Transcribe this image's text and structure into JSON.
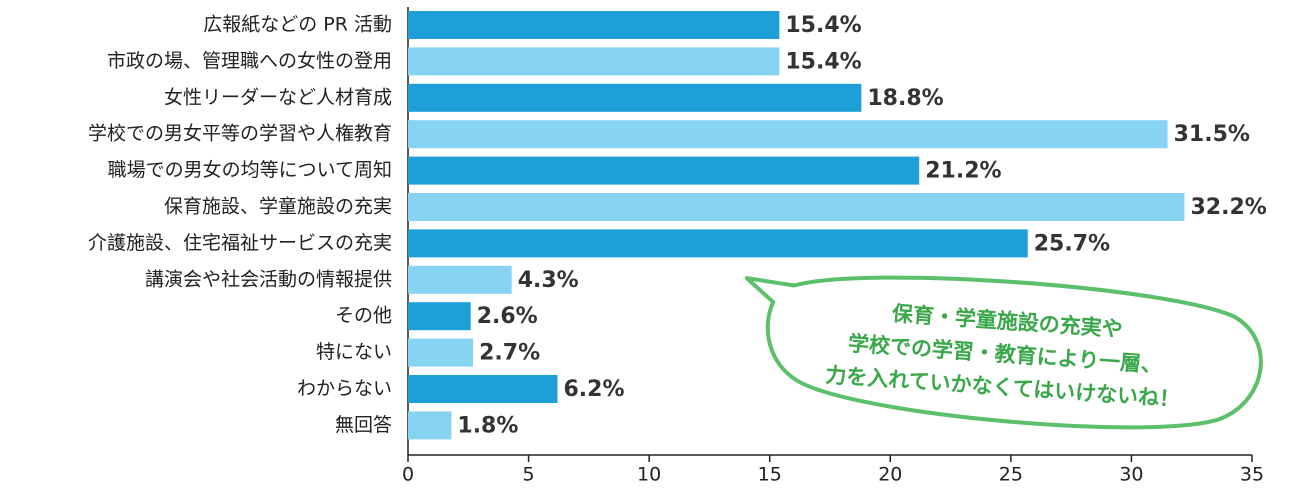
{
  "chart_data": {
    "type": "barh",
    "categories": [
      "広報紙などの PR 活動",
      "市政の場、管理職への女性の登用",
      "女性リーダーなど人材育成",
      "学校での男女平等の学習や人権教育",
      "職場での男女の均等について周知",
      "保育施設、学童施設の充実",
      "介護施設、住宅福祉サービスの充実",
      "講演会や社会活動の情報提供",
      "その他",
      "特にない",
      "わからない",
      "無回答"
    ],
    "values": [
      15.4,
      15.4,
      18.8,
      31.5,
      21.2,
      32.2,
      25.7,
      4.3,
      2.6,
      2.7,
      6.2,
      1.8
    ],
    "value_labels": [
      "15.4%",
      "15.4%",
      "18.8%",
      "31.5%",
      "21.2%",
      "32.2%",
      "25.7%",
      "4.3%",
      "2.6%",
      "2.7%",
      "6.2%",
      "1.8%"
    ],
    "colors": [
      "#1e9fd8",
      "#87d4f2",
      "#1e9fd8",
      "#87d4f2",
      "#1e9fd8",
      "#87d4f2",
      "#1e9fd8",
      "#87d4f2",
      "#1e9fd8",
      "#87d4f2",
      "#1e9fd8",
      "#87d4f2"
    ],
    "xlim": [
      0,
      35
    ],
    "xticks": [
      0,
      5,
      10,
      15,
      20,
      25,
      30,
      35
    ],
    "annotation": [
      "保育・学童施設の充実や",
      "学校での学習・教育により一層、",
      "力を入れていかなくてはいけないね！"
    ]
  }
}
